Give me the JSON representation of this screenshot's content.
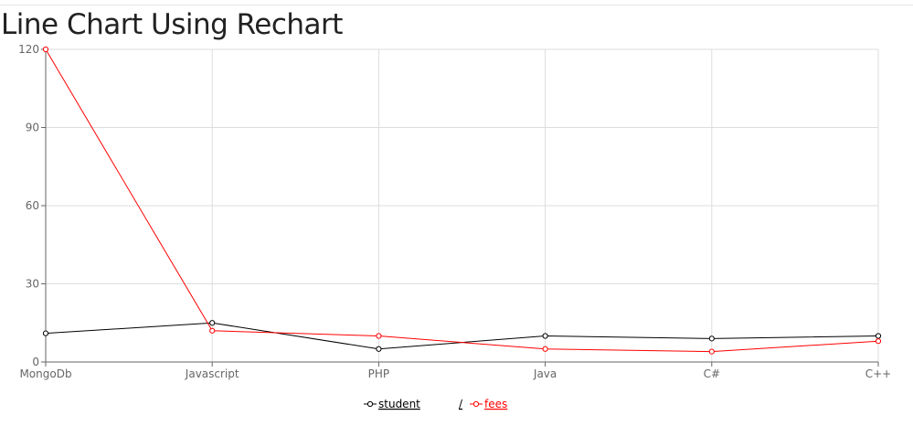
{
  "page": {
    "title": "Line Chart Using Rechart"
  },
  "chart_data": {
    "type": "line",
    "categories": [
      "MongoDb",
      "Javascript",
      "PHP",
      "Java",
      "C#",
      "C++"
    ],
    "series": [
      {
        "name": "student",
        "color": "#000000",
        "values": [
          11,
          15,
          5,
          10,
          9,
          10
        ]
      },
      {
        "name": "fees",
        "color": "#ff0000",
        "values": [
          120,
          12,
          10,
          5,
          4,
          8
        ]
      }
    ],
    "y_ticks": [
      0,
      30,
      60,
      90,
      120
    ],
    "ylim": [
      0,
      120
    ],
    "grid": true,
    "legend": {
      "position": "bottom-center",
      "separator": "/"
    }
  }
}
